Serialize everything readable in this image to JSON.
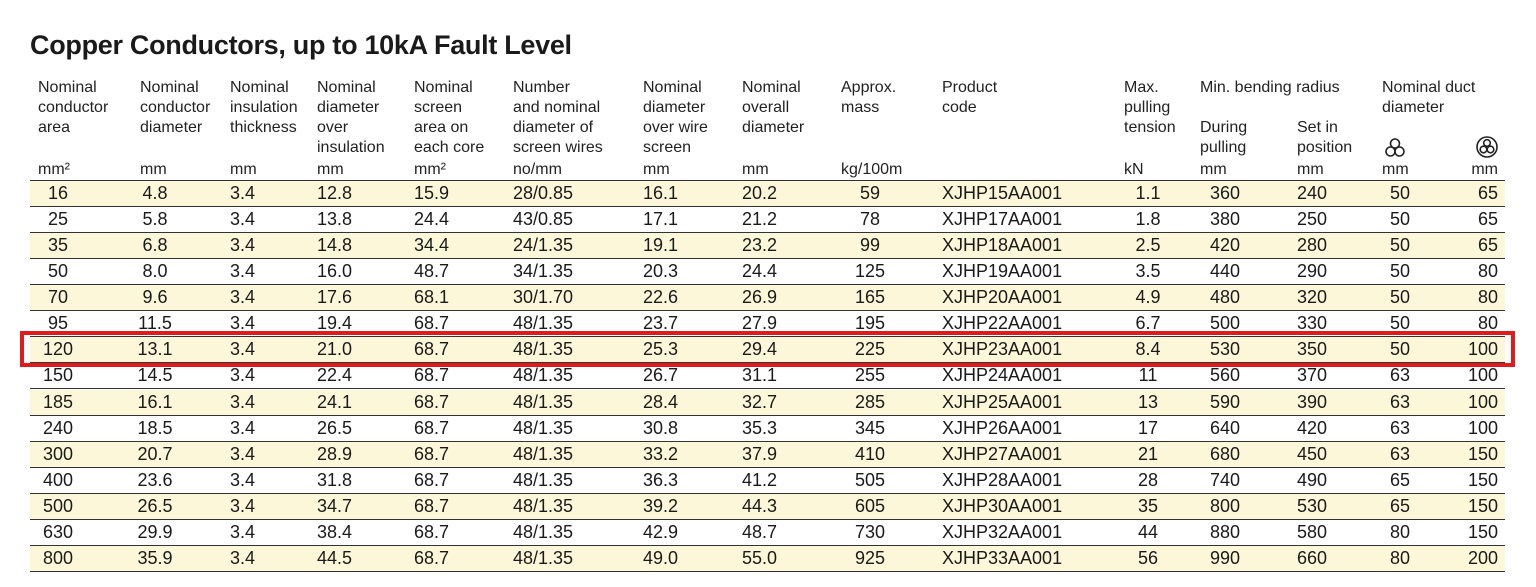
{
  "title": "Copper Conductors, up to 10kA Fault Level",
  "table": {
    "columns": [
      {
        "header": [
          "Nominal",
          "conductor",
          "area"
        ],
        "unit": "mm²"
      },
      {
        "header": [
          "Nominal",
          "conductor",
          "diameter"
        ],
        "unit": "mm"
      },
      {
        "header": [
          "Nominal",
          "insulation",
          "thickness"
        ],
        "unit": "mm"
      },
      {
        "header": [
          "Nominal",
          "diameter",
          "over",
          "insulation"
        ],
        "unit": "mm"
      },
      {
        "header": [
          "Nominal",
          "screen",
          "area on",
          "each core"
        ],
        "unit": "mm²"
      },
      {
        "header": [
          "Number",
          "and nominal",
          "diameter of",
          "screen wires"
        ],
        "unit": "no/mm"
      },
      {
        "header": [
          "Nominal",
          "diameter",
          "over wire",
          "screen"
        ],
        "unit": "mm"
      },
      {
        "header": [
          "Nominal",
          "overall",
          "diameter"
        ],
        "unit": "mm"
      },
      {
        "header": [
          "Approx.",
          "mass"
        ],
        "unit": "kg/100m"
      },
      {
        "header": [
          "Product",
          "code"
        ]
      },
      {
        "header": [
          "Max.",
          "pulling",
          "tension"
        ],
        "unit": "kN"
      },
      {
        "header": [
          "During",
          "pulling"
        ],
        "unit": "mm"
      },
      {
        "header": [
          "Set in",
          "position"
        ],
        "unit": "mm"
      },
      {
        "unit": "mm"
      },
      {
        "unit": "mm"
      }
    ],
    "groups": [
      {
        "header": [
          "Min. bending radius"
        ]
      },
      {
        "header": [
          "Nominal duct",
          "diameter"
        ]
      }
    ],
    "rows": [
      [
        "16",
        "4.8",
        "3.4",
        "12.8",
        "15.9",
        "28/0.85",
        "16.1",
        "20.2",
        "59",
        "XJHP15AA001",
        "1.1",
        "360",
        "240",
        "50",
        "65"
      ],
      [
        "25",
        "5.8",
        "3.4",
        "13.8",
        "24.4",
        "43/0.85",
        "17.1",
        "21.2",
        "78",
        "XJHP17AA001",
        "1.8",
        "380",
        "250",
        "50",
        "65"
      ],
      [
        "35",
        "6.8",
        "3.4",
        "14.8",
        "34.4",
        "24/1.35",
        "19.1",
        "23.2",
        "99",
        "XJHP18AA001",
        "2.5",
        "420",
        "280",
        "50",
        "65"
      ],
      [
        "50",
        "8.0",
        "3.4",
        "16.0",
        "48.7",
        "34/1.35",
        "20.3",
        "24.4",
        "125",
        "XJHP19AA001",
        "3.5",
        "440",
        "290",
        "50",
        "80"
      ],
      [
        "70",
        "9.6",
        "3.4",
        "17.6",
        "68.1",
        "30/1.70",
        "22.6",
        "26.9",
        "165",
        "XJHP20AA001",
        "4.9",
        "480",
        "320",
        "50",
        "80"
      ],
      [
        "95",
        "11.5",
        "3.4",
        "19.4",
        "68.7",
        "48/1.35",
        "23.7",
        "27.9",
        "195",
        "XJHP22AA001",
        "6.7",
        "500",
        "330",
        "50",
        "80"
      ],
      [
        "120",
        "13.1",
        "3.4",
        "21.0",
        "68.7",
        "48/1.35",
        "25.3",
        "29.4",
        "225",
        "XJHP23AA001",
        "8.4",
        "530",
        "350",
        "50",
        "100"
      ],
      [
        "150",
        "14.5",
        "3.4",
        "22.4",
        "68.7",
        "48/1.35",
        "26.7",
        "31.1",
        "255",
        "XJHP24AA001",
        "11",
        "560",
        "370",
        "63",
        "100"
      ],
      [
        "185",
        "16.1",
        "3.4",
        "24.1",
        "68.7",
        "48/1.35",
        "28.4",
        "32.7",
        "285",
        "XJHP25AA001",
        "13",
        "590",
        "390",
        "63",
        "100"
      ],
      [
        "240",
        "18.5",
        "3.4",
        "26.5",
        "68.7",
        "48/1.35",
        "30.8",
        "35.3",
        "345",
        "XJHP26AA001",
        "17",
        "640",
        "420",
        "63",
        "100"
      ],
      [
        "300",
        "20.7",
        "3.4",
        "28.9",
        "68.7",
        "48/1.35",
        "33.2",
        "37.9",
        "410",
        "XJHP27AA001",
        "21",
        "680",
        "450",
        "63",
        "150"
      ],
      [
        "400",
        "23.6",
        "3.4",
        "31.8",
        "68.7",
        "48/1.35",
        "36.3",
        "41.2",
        "505",
        "XJHP28AA001",
        "28",
        "740",
        "490",
        "65",
        "150"
      ],
      [
        "500",
        "26.5",
        "3.4",
        "34.7",
        "68.7",
        "48/1.35",
        "39.2",
        "44.3",
        "605",
        "XJHP30AA001",
        "35",
        "800",
        "530",
        "65",
        "150"
      ],
      [
        "630",
        "29.9",
        "3.4",
        "38.4",
        "68.7",
        "48/1.35",
        "42.9",
        "48.7",
        "730",
        "XJHP32AA001",
        "44",
        "880",
        "580",
        "80",
        "150"
      ],
      [
        "800",
        "35.9",
        "3.4",
        "44.5",
        "68.7",
        "48/1.35",
        "49.0",
        "55.0",
        "925",
        "XJHP33AA001",
        "56",
        "990",
        "660",
        "80",
        "200"
      ]
    ]
  }
}
